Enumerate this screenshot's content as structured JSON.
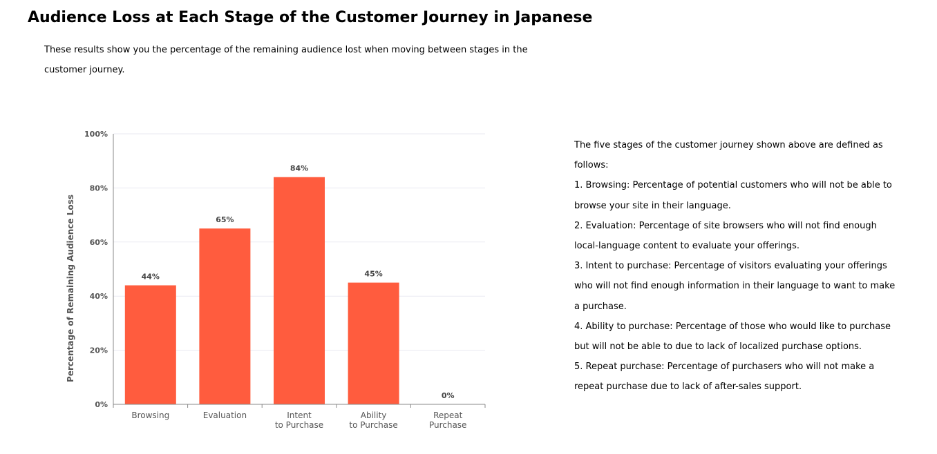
{
  "page": {
    "title": "Audience Loss at Each Stage of the Customer Journey in Japanese",
    "intro": "These results show you the percentage of the remaining audience lost when moving between stages in the customer journey."
  },
  "definitions": {
    "heading": "The five stages of the customer journey shown above are defined as follows:",
    "items": [
      "1. Browsing: Percentage of potential customers who will not be able to browse your site in their language.",
      "2. Evaluation: Percentage of site browsers who will not find enough local-language content to evaluate your offerings.",
      "3. Intent to purchase: Percentage of visitors evaluating your offerings who will not find enough information in their language to want to make a purchase.",
      "4. Ability to purchase: Percentage of those who would like to purchase but will not be able to due to lack of localized purchase options.",
      "5. Repeat purchase: Percentage of purchasers who will not make a repeat purchase due to lack of after-sales support."
    ]
  },
  "colors": {
    "bar": "#ff5c3e",
    "grid": "#e9e9f1",
    "axis": "#888888",
    "tick_text": "#555555",
    "data_label": "#444444"
  },
  "chart_data": {
    "type": "bar",
    "categories": [
      [
        "Browsing"
      ],
      [
        "Evaluation"
      ],
      [
        "Intent",
        "to Purchase"
      ],
      [
        "Ability",
        "to Purchase"
      ],
      [
        "Repeat",
        "Purchase"
      ]
    ],
    "values": [
      44,
      65,
      84,
      45,
      0
    ],
    "data_labels": [
      "44%",
      "65%",
      "84%",
      "45%",
      "0%"
    ],
    "title": "",
    "xlabel": "",
    "ylabel": "Percentage of Remaining Audience Loss",
    "ylim": [
      0,
      100
    ],
    "yticks": [
      0,
      20,
      40,
      60,
      80,
      100
    ],
    "ytick_labels": [
      "0%",
      "20%",
      "40%",
      "60%",
      "80%",
      "100%"
    ],
    "grid": true,
    "legend": "none"
  }
}
